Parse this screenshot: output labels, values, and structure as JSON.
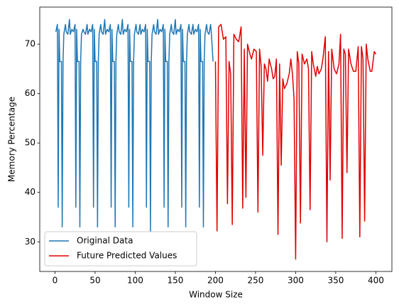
{
  "chart_data": {
    "type": "line",
    "xlabel": "Window Size",
    "ylabel": "Memory Percentage",
    "xlim": [
      -19,
      420
    ],
    "ylim": [
      24,
      77.5
    ],
    "xticks": [
      0,
      50,
      100,
      150,
      200,
      250,
      300,
      350,
      400
    ],
    "yticks": [
      30,
      40,
      50,
      60,
      70
    ],
    "grid": false,
    "legend": "lower left",
    "series": [
      {
        "name": "Original Data",
        "color": "#1f77b4",
        "x": [
          1,
          3,
          4,
          5,
          6,
          8,
          9,
          10,
          11,
          13,
          14,
          16,
          18,
          19,
          21,
          23,
          25,
          26,
          27,
          28,
          30,
          31,
          32,
          33,
          35,
          36,
          38,
          40,
          41,
          43,
          45,
          47,
          48,
          49,
          50,
          52,
          53,
          54,
          55,
          57,
          58,
          60,
          62,
          63,
          65,
          67,
          69,
          70,
          71,
          72,
          74,
          75,
          76,
          77,
          79,
          80,
          82,
          84,
          85,
          87,
          89,
          91,
          92,
          93,
          94,
          96,
          97,
          98,
          99,
          101,
          102,
          104,
          106,
          107,
          109,
          111,
          113,
          114,
          115,
          116,
          118,
          119,
          120,
          121,
          123,
          124,
          126,
          128,
          129,
          131,
          133,
          135,
          136,
          137,
          138,
          140,
          141,
          142,
          143,
          145,
          146,
          148,
          150,
          151,
          153,
          155,
          157,
          158,
          159,
          160,
          162,
          163,
          164,
          165,
          167,
          168,
          170,
          172,
          173,
          175,
          177,
          179,
          180,
          181,
          182,
          184,
          185,
          186,
          187,
          189,
          190,
          192,
          194,
          195,
          197
        ],
        "values": [
          72.5,
          74,
          37,
          73,
          66.5,
          66.5,
          33,
          66.5,
          72,
          74,
          72.5,
          72,
          75,
          72,
          73,
          72.5,
          74,
          37,
          73,
          66.5,
          66.5,
          33,
          66.5,
          72,
          73,
          72.5,
          72,
          74,
          72,
          73,
          72.5,
          74,
          37,
          73,
          66.5,
          66.5,
          33,
          66.5,
          72,
          74,
          72.5,
          72,
          75,
          72,
          73,
          72.5,
          74,
          37,
          73,
          66.5,
          66.5,
          33,
          66.5,
          72,
          74,
          72.5,
          72,
          75,
          72,
          73,
          72.5,
          74,
          37,
          73,
          66.5,
          66.5,
          33,
          66.5,
          72,
          74,
          72.5,
          72,
          74,
          72,
          73,
          72.5,
          74,
          37,
          73,
          66.5,
          66.5,
          32,
          66.5,
          72,
          74,
          72.5,
          72,
          75,
          72,
          73,
          72.5,
          74,
          37,
          73,
          66.5,
          66.5,
          33,
          66.5,
          72,
          74,
          72.5,
          72,
          75,
          72,
          73,
          72.5,
          74,
          37,
          73,
          66.5,
          66.5,
          33,
          66.5,
          72,
          74,
          72.5,
          72,
          74,
          72,
          73,
          72.5,
          74,
          37,
          73,
          66.5,
          66.5,
          33,
          66.5,
          72,
          74,
          72.5,
          72,
          74,
          72,
          66.5
        ]
      },
      {
        "name": "Future Predicted Values",
        "color": "#e00000",
        "x": [
          200,
          202,
          204,
          207,
          210,
          213,
          215,
          217,
          219,
          221,
          223,
          226,
          229,
          232,
          234,
          236,
          238,
          240,
          243,
          245,
          248,
          251,
          253,
          255,
          257,
          259,
          261,
          263,
          265,
          267,
          270,
          272,
          274,
          276,
          278,
          280,
          282,
          284,
          286,
          289,
          292,
          294,
          296,
          298,
          300,
          302,
          304,
          306,
          308,
          311,
          314,
          316,
          318,
          320,
          322,
          325,
          327,
          329,
          332,
          334,
          337,
          339,
          341,
          343,
          345,
          348,
          351,
          354,
          356,
          358,
          360,
          362,
          364,
          366,
          369,
          372,
          375,
          378,
          380,
          382,
          384,
          386,
          388,
          390,
          393,
          395,
          398,
          400
        ],
        "values": [
          66.5,
          32.2,
          73.5,
          74,
          71,
          71.5,
          37.7,
          66.5,
          64,
          33.5,
          72,
          71,
          70.5,
          73.5,
          36.8,
          69,
          39,
          70,
          68,
          67,
          69,
          68.5,
          36,
          69,
          65.5,
          47.5,
          66,
          65,
          62.5,
          67,
          65,
          63,
          63.5,
          67,
          31.5,
          66,
          45.5,
          63,
          61,
          62,
          64,
          67,
          64,
          59,
          26.5,
          68.5,
          66,
          33.8,
          68,
          66,
          67,
          65,
          36.5,
          68.5,
          66,
          63.5,
          65.5,
          64,
          65,
          67,
          71.5,
          30,
          68.5,
          42.5,
          69,
          65,
          64,
          66,
          72,
          30.7,
          69,
          68,
          44,
          69,
          66,
          64.5,
          64.5,
          69.5,
          31,
          69.5,
          67,
          34.2,
          70,
          67,
          64.5,
          64.5,
          68.5,
          68
        ]
      }
    ]
  }
}
